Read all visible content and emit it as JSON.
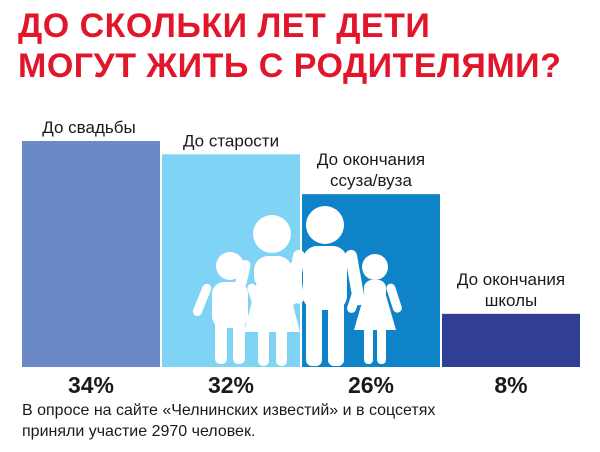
{
  "title": {
    "line1": "ДО СКОЛЬКИ ЛЕТ ДЕТИ",
    "line2": "МОГУТ ЖИТЬ С РОДИТЕЛЯМИ?"
  },
  "chart_data": {
    "type": "bar",
    "categories": [
      [
        "До свадьбы"
      ],
      [
        "До старости"
      ],
      [
        "До окончания",
        "ссуза/вуза"
      ],
      [
        "До окончания",
        "школы"
      ]
    ],
    "values": [
      34,
      32,
      26,
      8
    ],
    "value_labels": [
      "34%",
      "32%",
      "26%",
      "8%"
    ],
    "colors": [
      "#6b89c4",
      "#7fd3f5",
      "#0f83c8",
      "#303f95"
    ],
    "ylim": [
      0,
      34
    ],
    "grid": false,
    "legend": "none"
  },
  "footnote": {
    "line1": "В опросе на сайте «Челнинских известий» и в соцсетях",
    "line2": "приняли участие 2970 человек."
  },
  "colors": {
    "title": "#e2162b",
    "figures": "#ffffff",
    "text": "#1a1a1a"
  },
  "icons": [
    "family-figures-icon"
  ]
}
